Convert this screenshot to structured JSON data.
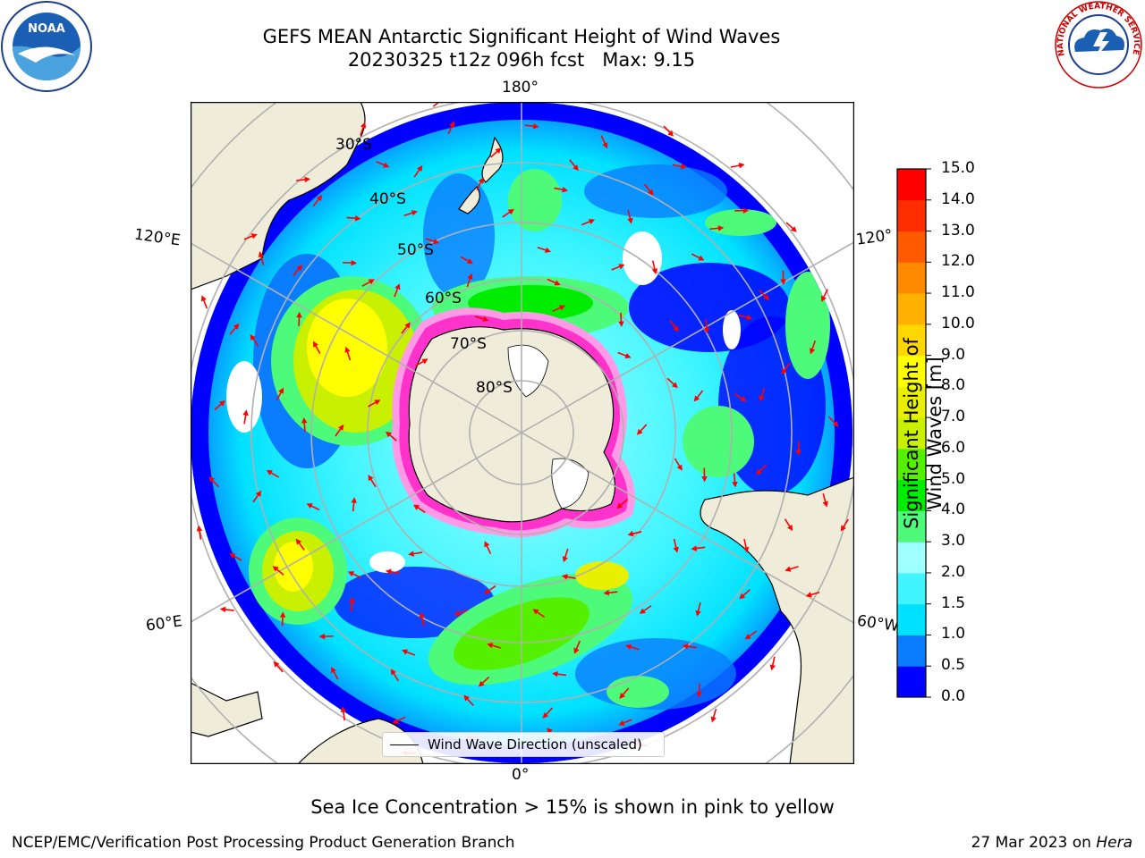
{
  "title": {
    "line1": "GEFS MEAN Antarctic Significant Height of Wind Waves",
    "line2": "20230325 t12z 096h fcst   Max: 9.15"
  },
  "map": {
    "projection": "south-polar-stereographic",
    "longitude_labels": [
      {
        "id": "lon-180",
        "text": "180°"
      },
      {
        "id": "lon-120e",
        "text": "120°E"
      },
      {
        "id": "lon-120w",
        "text": "120°"
      },
      {
        "id": "lon-60e",
        "text": "60°E"
      },
      {
        "id": "lon-60w",
        "text": "60°W"
      },
      {
        "id": "lon-0",
        "text": "0°"
      }
    ],
    "latitude_labels": [
      "30°S",
      "40°S",
      "50°S",
      "60°S",
      "70°S",
      "80°S"
    ],
    "legend_entry": "Wind Wave Direction (unscaled)",
    "arrow_color": "#ff0000",
    "land_color": "#efedda",
    "ice_color": "#ff33cc"
  },
  "colorbar": {
    "label": "Significant Height of Wind Waves [m]",
    "ticks": [
      "0.0",
      "0.5",
      "1.0",
      "1.5",
      "2.0",
      "3.0",
      "4.0",
      "5.0",
      "6.0",
      "7.0",
      "8.0",
      "9.0",
      "10.0",
      "11.0",
      "12.0",
      "13.0",
      "14.0",
      "15.0"
    ],
    "colors": [
      "#0000ff",
      "#0a7dff",
      "#00e1ff",
      "#40f5ff",
      "#a0ffff",
      "#4dfa7a",
      "#00ec00",
      "#55f000",
      "#c8f000",
      "#e8f000",
      "#ffff00",
      "#ffd700",
      "#ffb000",
      "#ff8a00",
      "#ff5a00",
      "#ff2d00",
      "#ff0000"
    ]
  },
  "caption": "Sea Ice Concentration > 15% is shown in pink to yellow",
  "footer": {
    "left": "NCEP/EMC/Verification Post Processing Product Generation Branch",
    "right_date": "27 Mar 2023 on ",
    "right_host": "Hera"
  },
  "logos": {
    "noaa": "NOAA",
    "nws": "NATIONAL WEATHER SERVICE"
  }
}
